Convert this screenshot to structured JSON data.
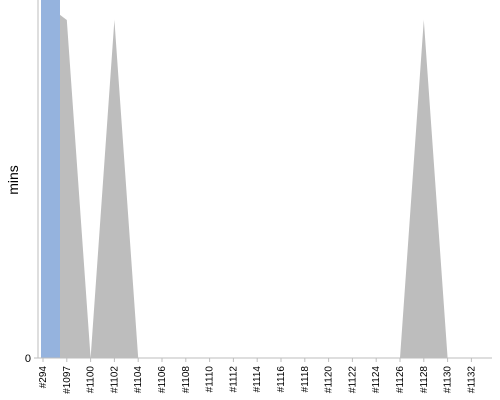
{
  "chart_data": {
    "type": "area",
    "title": "",
    "xlabel": "",
    "ylabel": "mins",
    "y_ticks": [
      "0"
    ],
    "ylim": [
      0,
      1
    ],
    "grid": false,
    "categories": [
      "#294",
      "#1097",
      "#1100",
      "#1102",
      "#1104",
      "#1106",
      "#1108",
      "#1110",
      "#1112",
      "#1114",
      "#1116",
      "#1118",
      "#1120",
      "#1122",
      "#1124",
      "#1126",
      "#1128",
      "#1130",
      "#1132"
    ],
    "series": [
      {
        "color": "#bdbdbd",
        "values": [
          1,
          1,
          0,
          1,
          0,
          0,
          0,
          0,
          0,
          0,
          0,
          0,
          0,
          0,
          0,
          0,
          1,
          0,
          0
        ]
      }
    ],
    "highlight": {
      "category": "#294",
      "color": "#95b3de"
    }
  }
}
